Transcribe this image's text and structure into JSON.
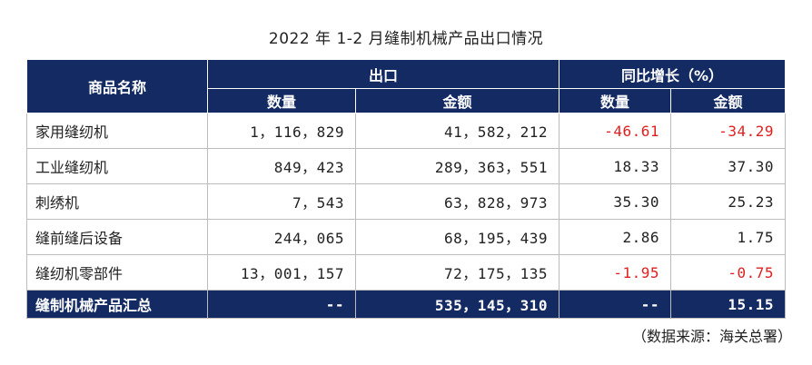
{
  "title": "2022 年 1-2 月缝制机械产品出口情况",
  "header": {
    "product_name": "商品名称",
    "export": "出口",
    "yoy": "同比增长（%）",
    "quantity": "数量",
    "amount": "金额",
    "yoy_quantity": "数量",
    "yoy_amount": "金额"
  },
  "rows": [
    {
      "name": "家用缝纫机",
      "quantity": "1，116，829",
      "amount": "41，582，212",
      "yoy_quantity": "-46.61",
      "yoy_amount": "-34.29"
    },
    {
      "name": "工业缝纫机",
      "quantity": "849，423",
      "amount": "289，363，551",
      "yoy_quantity": "18.33",
      "yoy_amount": "37.30"
    },
    {
      "name": "刺绣机",
      "quantity": "7，543",
      "amount": "63，828，973",
      "yoy_quantity": "35.30",
      "yoy_amount": "25.23"
    },
    {
      "name": "缝前缝后设备",
      "quantity": "244，065",
      "amount": "68，195，439",
      "yoy_quantity": "2.86",
      "yoy_amount": "1.75"
    },
    {
      "name": "缝纫机零部件",
      "quantity": "13，001，157",
      "amount": "72，175，135",
      "yoy_quantity": "-1.95",
      "yoy_amount": "-0.75"
    }
  ],
  "total": {
    "name": "缝制机械产品汇总",
    "quantity": "--",
    "amount": "535，145，310",
    "yoy_quantity": "--",
    "yoy_amount": "15.15"
  },
  "source": "（数据来源：海关总署）",
  "colors": {
    "header_bg": "#142a63",
    "negative": "#e02020"
  }
}
